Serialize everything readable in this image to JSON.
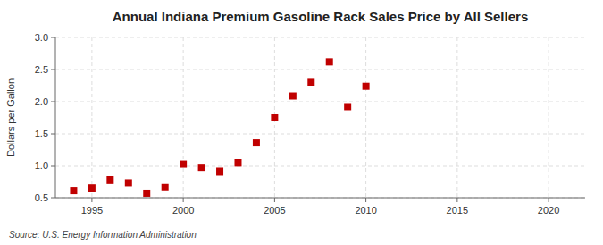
{
  "chart_data": {
    "type": "scatter",
    "title": "Annual Indiana Premium Gasoline Rack Sales Price by All Sellers",
    "ylabel": "Dollars per Gallon",
    "annotations": [
      "Source: U.S. Energy Information Administration"
    ],
    "x": [
      1994,
      1995,
      1996,
      1997,
      1998,
      1999,
      2000,
      2001,
      2002,
      2003,
      2004,
      2005,
      2006,
      2007,
      2008,
      2009,
      2010
    ],
    "values": [
      0.61,
      0.65,
      0.78,
      0.73,
      0.57,
      0.67,
      1.02,
      0.97,
      0.91,
      1.05,
      1.36,
      1.75,
      2.09,
      2.3,
      2.62,
      1.91,
      2.24
    ],
    "color": "#c00000",
    "marker": "square",
    "xlim": [
      1993,
      2022
    ],
    "ylim": [
      0.5,
      3.0
    ],
    "xticks": [
      1995,
      2000,
      2005,
      2010,
      2015,
      2020
    ],
    "yticks": [
      0.5,
      {
        "value": 1.0,
        "label": "1.0"
      },
      1.5,
      {
        "value": 2.0,
        "label": "2.0"
      },
      2.5,
      {
        "value": 3.0,
        "label": "3.0"
      }
    ],
    "grid": true
  }
}
